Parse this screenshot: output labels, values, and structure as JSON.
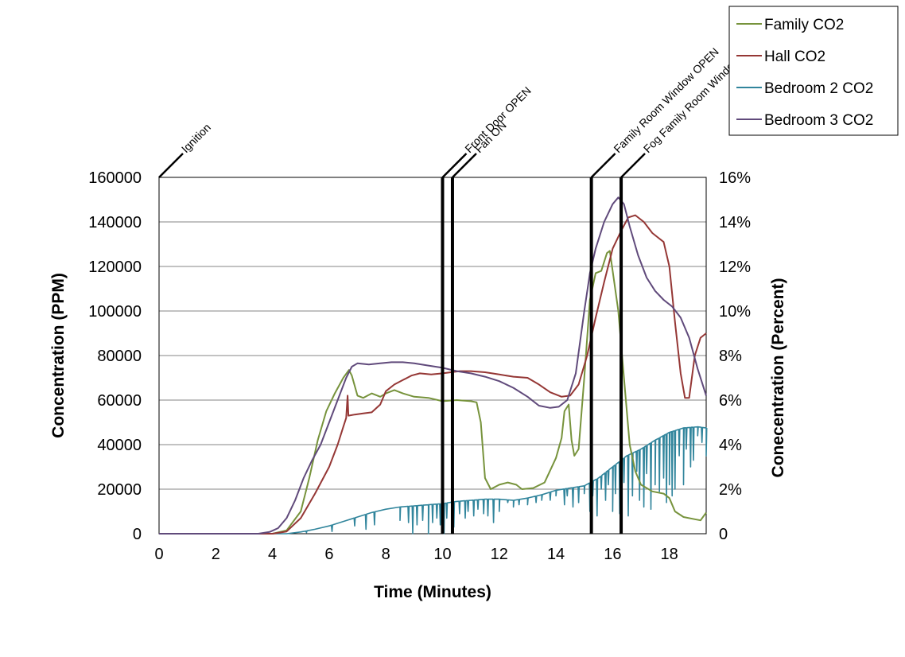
{
  "chart_data": {
    "type": "line",
    "xlabel": "Time (Minutes)",
    "ylabel": "Concentration (PPM)",
    "y2label": "Conecentration (Percent)",
    "xlim": [
      0,
      19.3
    ],
    "ylim": [
      0,
      160000
    ],
    "y2lim": [
      0,
      16
    ],
    "x_ticks": [
      0,
      2,
      4,
      6,
      8,
      10,
      12,
      14,
      16,
      18
    ],
    "x_tick_labels": [
      "0",
      "2",
      "4",
      "6",
      "8",
      "10",
      "12",
      "14",
      "16",
      "18"
    ],
    "y_ticks": [
      0,
      20000,
      40000,
      60000,
      80000,
      100000,
      120000,
      140000,
      160000
    ],
    "y_tick_labels": [
      "0",
      "20000",
      "40000",
      "60000",
      "80000",
      "100000",
      "120000",
      "140000",
      "160000"
    ],
    "y2_tick_labels": [
      "0",
      "2%",
      "4%",
      "6%",
      "8%",
      "10%",
      "12%",
      "14%",
      "16%"
    ],
    "grid": "horizontal",
    "legend_position": "top-right",
    "events": [
      {
        "x": 0,
        "label": "Ignition"
      },
      {
        "x": 10.0,
        "label": "Front Door OPEN"
      },
      {
        "x": 10.35,
        "label": "Fan ON"
      },
      {
        "x": 15.25,
        "label": "Family Room Window OPEN"
      },
      {
        "x": 16.3,
        "label": "Fog Family Room Window"
      }
    ],
    "series": [
      {
        "name": "Family CO2",
        "color": "#77933c",
        "axis": "left",
        "points": [
          [
            0,
            0
          ],
          [
            4.0,
            0
          ],
          [
            4.5,
            1500
          ],
          [
            5.0,
            10000
          ],
          [
            5.3,
            25000
          ],
          [
            5.6,
            42000
          ],
          [
            5.9,
            55000
          ],
          [
            6.2,
            63000
          ],
          [
            6.5,
            70000
          ],
          [
            6.7,
            73500
          ],
          [
            6.8,
            71000
          ],
          [
            7.0,
            62000
          ],
          [
            7.2,
            61000
          ],
          [
            7.5,
            63000
          ],
          [
            7.8,
            61500
          ],
          [
            8.0,
            63000
          ],
          [
            8.3,
            64500
          ],
          [
            8.6,
            63000
          ],
          [
            9.0,
            61500
          ],
          [
            9.5,
            61000
          ],
          [
            10.0,
            59500
          ],
          [
            10.5,
            60000
          ],
          [
            11.0,
            59500
          ],
          [
            11.2,
            59000
          ],
          [
            11.35,
            50000
          ],
          [
            11.5,
            25000
          ],
          [
            11.7,
            20000
          ],
          [
            12.0,
            22000
          ],
          [
            12.3,
            23000
          ],
          [
            12.6,
            22000
          ],
          [
            12.8,
            20000
          ],
          [
            13.2,
            20500
          ],
          [
            13.6,
            23000
          ],
          [
            14.0,
            34000
          ],
          [
            14.2,
            43000
          ],
          [
            14.3,
            55000
          ],
          [
            14.45,
            58000
          ],
          [
            14.55,
            42000
          ],
          [
            14.65,
            35000
          ],
          [
            14.8,
            38000
          ],
          [
            15.0,
            70000
          ],
          [
            15.2,
            105000
          ],
          [
            15.4,
            117000
          ],
          [
            15.6,
            118000
          ],
          [
            15.8,
            126000
          ],
          [
            15.9,
            127000
          ],
          [
            16.0,
            118000
          ],
          [
            16.2,
            100000
          ],
          [
            16.4,
            70000
          ],
          [
            16.6,
            40000
          ],
          [
            16.8,
            28000
          ],
          [
            17.0,
            22000
          ],
          [
            17.4,
            19000
          ],
          [
            17.8,
            18000
          ],
          [
            18.0,
            16000
          ],
          [
            18.2,
            10000
          ],
          [
            18.5,
            7500
          ],
          [
            18.9,
            6500
          ],
          [
            19.1,
            6000
          ],
          [
            19.3,
            9500
          ]
        ]
      },
      {
        "name": "Hall CO2",
        "color": "#953735",
        "axis": "left",
        "points": [
          [
            0,
            0
          ],
          [
            4.0,
            0
          ],
          [
            4.5,
            1000
          ],
          [
            5.0,
            7000
          ],
          [
            5.5,
            18000
          ],
          [
            6.0,
            30000
          ],
          [
            6.3,
            40000
          ],
          [
            6.5,
            48000
          ],
          [
            6.6,
            52000
          ],
          [
            6.65,
            62000
          ],
          [
            6.68,
            53000
          ],
          [
            6.9,
            53500
          ],
          [
            7.2,
            54000
          ],
          [
            7.5,
            54500
          ],
          [
            7.8,
            58000
          ],
          [
            8.0,
            64000
          ],
          [
            8.3,
            67000
          ],
          [
            8.6,
            69000
          ],
          [
            8.9,
            71000
          ],
          [
            9.2,
            72000
          ],
          [
            9.6,
            71500
          ],
          [
            10.0,
            72000
          ],
          [
            10.3,
            72500
          ],
          [
            10.6,
            73000
          ],
          [
            11.0,
            73000
          ],
          [
            11.5,
            72500
          ],
          [
            12.0,
            71500
          ],
          [
            12.5,
            70500
          ],
          [
            13.0,
            70000
          ],
          [
            13.4,
            67000
          ],
          [
            13.8,
            63500
          ],
          [
            14.2,
            61500
          ],
          [
            14.5,
            62000
          ],
          [
            14.8,
            67000
          ],
          [
            15.1,
            80000
          ],
          [
            15.4,
            97000
          ],
          [
            15.7,
            113000
          ],
          [
            16.0,
            128000
          ],
          [
            16.3,
            136000
          ],
          [
            16.55,
            142000
          ],
          [
            16.8,
            143000
          ],
          [
            17.1,
            140000
          ],
          [
            17.4,
            135000
          ],
          [
            17.6,
            133000
          ],
          [
            17.8,
            131000
          ],
          [
            18.0,
            120000
          ],
          [
            18.2,
            95000
          ],
          [
            18.4,
            72000
          ],
          [
            18.55,
            61000
          ],
          [
            18.7,
            61000
          ],
          [
            18.9,
            80000
          ],
          [
            19.1,
            88000
          ],
          [
            19.3,
            90000
          ]
        ]
      },
      {
        "name": "Bedroom 2 CO2",
        "color": "#31859c",
        "axis": "left",
        "points": [
          [
            0,
            0
          ],
          [
            4.5,
            0
          ],
          [
            5.0,
            800
          ],
          [
            5.5,
            2000
          ],
          [
            6.0,
            3500
          ],
          [
            6.5,
            5500
          ],
          [
            7.0,
            7500
          ],
          [
            7.5,
            9500
          ],
          [
            8.0,
            11000
          ],
          [
            8.5,
            12000
          ],
          [
            9.0,
            12500
          ],
          [
            9.5,
            13000
          ],
          [
            10.0,
            13500
          ],
          [
            10.5,
            14500
          ],
          [
            11.0,
            15000
          ],
          [
            11.5,
            15500
          ],
          [
            12.0,
            15500
          ],
          [
            12.5,
            15000
          ],
          [
            13.0,
            16000
          ],
          [
            13.5,
            17500
          ],
          [
            14.0,
            19500
          ],
          [
            14.5,
            20500
          ],
          [
            15.0,
            21500
          ],
          [
            15.5,
            25000
          ],
          [
            16.0,
            30000
          ],
          [
            16.5,
            35000
          ],
          [
            17.0,
            38000
          ],
          [
            17.5,
            42000
          ],
          [
            18.0,
            45500
          ],
          [
            18.5,
            47500
          ],
          [
            19.0,
            48000
          ],
          [
            19.3,
            47500
          ]
        ],
        "dips": [
          [
            5.2,
            500
          ],
          [
            6.1,
            1000
          ],
          [
            6.9,
            3500
          ],
          [
            7.3,
            2000
          ],
          [
            7.6,
            4000
          ],
          [
            8.5,
            6000
          ],
          [
            8.8,
            5000
          ],
          [
            8.95,
            0
          ],
          [
            9.1,
            4000
          ],
          [
            9.3,
            6000
          ],
          [
            9.5,
            0
          ],
          [
            9.65,
            5000
          ],
          [
            9.8,
            7000
          ],
          [
            9.92,
            4000
          ],
          [
            10.05,
            0
          ],
          [
            10.15,
            7000
          ],
          [
            10.4,
            3000
          ],
          [
            10.6,
            9000
          ],
          [
            10.8,
            7000
          ],
          [
            10.9,
            10000
          ],
          [
            11.1,
            8000
          ],
          [
            11.25,
            11000
          ],
          [
            11.45,
            9000
          ],
          [
            11.6,
            8000
          ],
          [
            11.8,
            5000
          ],
          [
            12.0,
            10000
          ],
          [
            12.3,
            14000
          ],
          [
            12.5,
            12000
          ],
          [
            12.7,
            13000
          ],
          [
            13.0,
            13000
          ],
          [
            13.3,
            14000
          ],
          [
            13.5,
            15000
          ],
          [
            13.8,
            15000
          ],
          [
            14.0,
            17000
          ],
          [
            14.3,
            13000
          ],
          [
            14.4,
            17000
          ],
          [
            14.6,
            12000
          ],
          [
            14.8,
            14000
          ],
          [
            15.0,
            18000
          ],
          [
            15.2,
            10000
          ],
          [
            15.3,
            17000
          ],
          [
            15.45,
            8000
          ],
          [
            15.6,
            20000
          ],
          [
            15.75,
            15000
          ],
          [
            15.85,
            22000
          ],
          [
            16.0,
            10000
          ],
          [
            16.1,
            18000
          ],
          [
            16.25,
            9000
          ],
          [
            16.4,
            23000
          ],
          [
            16.55,
            8000
          ],
          [
            16.7,
            17000
          ],
          [
            16.85,
            28000
          ],
          [
            16.95,
            15000
          ],
          [
            17.1,
            12000
          ],
          [
            17.2,
            27000
          ],
          [
            17.35,
            11000
          ],
          [
            17.5,
            22000
          ],
          [
            17.65,
            19000
          ],
          [
            17.8,
            25000
          ],
          [
            17.9,
            14000
          ],
          [
            18.0,
            22000
          ],
          [
            18.1,
            17000
          ],
          [
            18.2,
            20000
          ],
          [
            18.35,
            35000
          ],
          [
            18.5,
            22000
          ],
          [
            18.6,
            38000
          ],
          [
            18.75,
            30000
          ],
          [
            18.85,
            33000
          ],
          [
            19.0,
            44000
          ],
          [
            19.15,
            41000
          ],
          [
            19.3,
            35000
          ]
        ]
      },
      {
        "name": "Bedroom 3 CO2",
        "color": "#604a7b",
        "axis": "left",
        "points": [
          [
            0,
            0
          ],
          [
            3.5,
            0
          ],
          [
            3.9,
            800
          ],
          [
            4.2,
            2500
          ],
          [
            4.5,
            7000
          ],
          [
            4.8,
            15000
          ],
          [
            5.1,
            25000
          ],
          [
            5.4,
            33000
          ],
          [
            5.7,
            40000
          ],
          [
            6.0,
            50000
          ],
          [
            6.3,
            60000
          ],
          [
            6.6,
            70000
          ],
          [
            6.8,
            75000
          ],
          [
            7.0,
            76500
          ],
          [
            7.4,
            76000
          ],
          [
            7.8,
            76500
          ],
          [
            8.2,
            77000
          ],
          [
            8.6,
            77000
          ],
          [
            9.0,
            76500
          ],
          [
            9.5,
            75500
          ],
          [
            10.0,
            74500
          ],
          [
            10.5,
            73000
          ],
          [
            11.0,
            72000
          ],
          [
            11.5,
            70500
          ],
          [
            12.0,
            68500
          ],
          [
            12.5,
            65500
          ],
          [
            13.0,
            61500
          ],
          [
            13.4,
            57500
          ],
          [
            13.8,
            56500
          ],
          [
            14.1,
            57000
          ],
          [
            14.4,
            60000
          ],
          [
            14.7,
            72000
          ],
          [
            15.0,
            100000
          ],
          [
            15.2,
            117000
          ],
          [
            15.4,
            128000
          ],
          [
            15.7,
            140000
          ],
          [
            16.0,
            148000
          ],
          [
            16.2,
            151000
          ],
          [
            16.4,
            148000
          ],
          [
            16.6,
            138000
          ],
          [
            16.9,
            125000
          ],
          [
            17.2,
            115000
          ],
          [
            17.5,
            109000
          ],
          [
            17.8,
            105000
          ],
          [
            18.1,
            102000
          ],
          [
            18.4,
            97000
          ],
          [
            18.7,
            88000
          ],
          [
            19.0,
            74000
          ],
          [
            19.3,
            62000
          ]
        ]
      }
    ]
  }
}
